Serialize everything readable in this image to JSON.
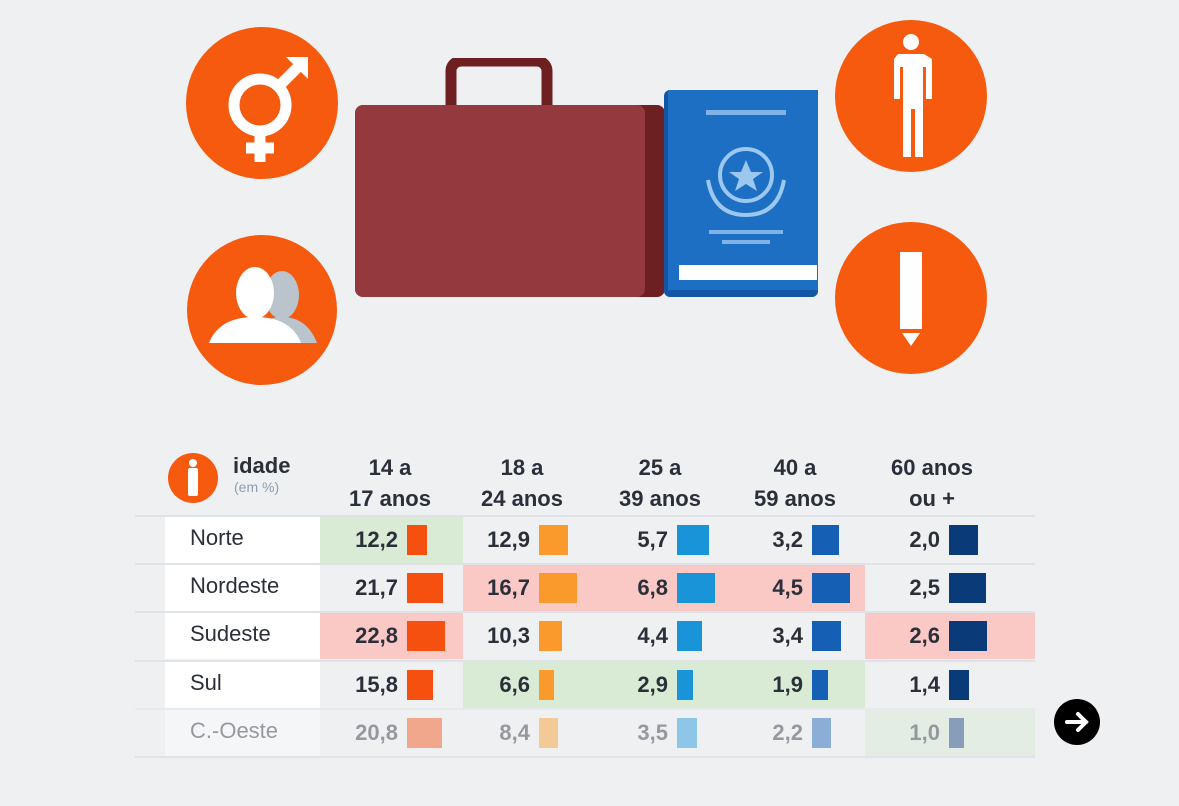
{
  "icons": [
    "gender-icon",
    "users-icon",
    "briefcase-icon",
    "passport-icon",
    "person-icon",
    "exclamation-icon",
    "next-arrow-icon"
  ],
  "chart_data": {
    "type": "table",
    "title": "idade",
    "unit": "(em %)",
    "columns": [
      "14 a 17 anos",
      "18 a 24 anos",
      "25 a 39 anos",
      "40 a 59 anos",
      "60 anos ou +"
    ],
    "column_lines": [
      [
        "14 a",
        "17 anos"
      ],
      [
        "18 a",
        "24 anos"
      ],
      [
        "25 a",
        "39 anos"
      ],
      [
        "40 a",
        "59 anos"
      ],
      [
        "60 anos",
        "ou +"
      ]
    ],
    "rows": [
      {
        "region": "Norte",
        "values": [
          "12,2",
          "12,9",
          "5,7",
          "3,2",
          "2,0"
        ],
        "highlight": [
          "green",
          "",
          "",
          "",
          ""
        ]
      },
      {
        "region": "Nordeste",
        "values": [
          "21,7",
          "16,7",
          "6,8",
          "4,5",
          "2,5"
        ],
        "highlight": [
          "",
          "red",
          "red",
          "red",
          ""
        ]
      },
      {
        "region": "Sudeste",
        "values": [
          "22,8",
          "10,3",
          "4,4",
          "3,4",
          "2,6"
        ],
        "highlight": [
          "red",
          "",
          "",
          "",
          "red"
        ]
      },
      {
        "region": "Sul",
        "values": [
          "15,8",
          "6,6",
          "2,9",
          "1,9",
          "1,4"
        ],
        "highlight": [
          "",
          "green",
          "green",
          "green",
          ""
        ]
      },
      {
        "region": "C.-Oeste",
        "values": [
          "20,8",
          "8,4",
          "3,5",
          "2,2",
          "1,0"
        ],
        "highlight": [
          "",
          "",
          "",
          "",
          "green"
        ]
      }
    ],
    "column_colors": [
      "#f5500f",
      "#fb9a2c",
      "#1a94d8",
      "#1560b5",
      "#0b3a78"
    ],
    "highlight_colors": {
      "green": "#d9ebd4",
      "red": "#fac9c6"
    }
  }
}
